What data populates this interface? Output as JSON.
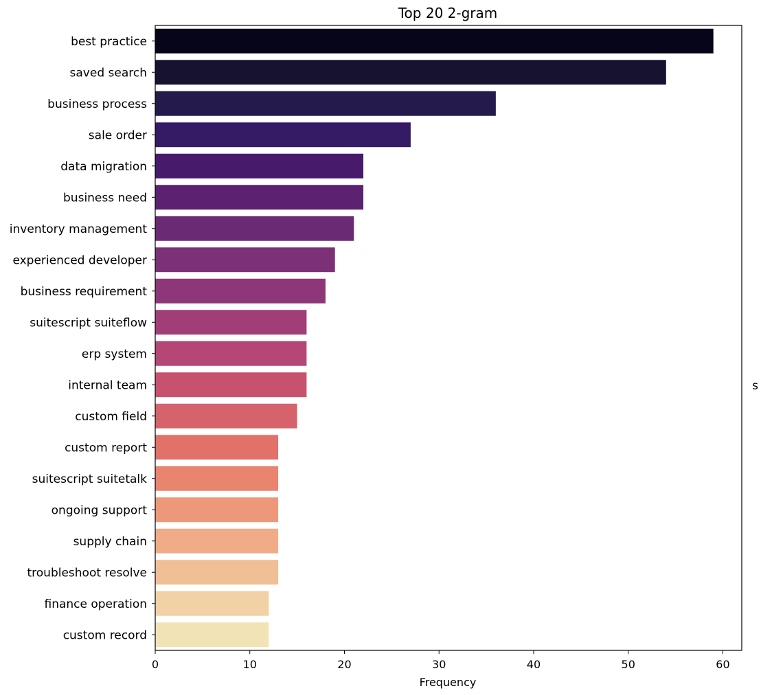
{
  "chart_data": {
    "type": "bar",
    "orientation": "horizontal",
    "title": "Top 20 2-gram",
    "xlabel": "Frequency",
    "ylabel": "",
    "xlim": [
      0,
      62
    ],
    "xticks": [
      0,
      10,
      20,
      30,
      40,
      50,
      60
    ],
    "grid": false,
    "legend": "none",
    "side_text": "s",
    "categories": [
      "best practice",
      "saved search",
      "business process",
      "sale order",
      "data migration",
      "business need",
      "inventory management",
      "experienced developer",
      "business requirement",
      "suitescript suiteflow",
      "erp system",
      "internal team",
      "custom field",
      "custom report",
      "suitescript suitetalk",
      "ongoing support",
      "supply chain",
      "troubleshoot resolve",
      "finance operation",
      "custom record"
    ],
    "values": [
      59,
      54,
      36,
      27,
      22,
      22,
      21,
      19,
      18,
      16,
      16,
      16,
      15,
      13,
      13,
      13,
      13,
      13,
      12,
      12
    ],
    "colors": [
      "#070519",
      "#161230",
      "#241b4c",
      "#351a66",
      "#481a6c",
      "#5a2270",
      "#6b2a74",
      "#7c3177",
      "#8d3778",
      "#a13e78",
      "#b54776",
      "#c75270",
      "#d6626c",
      "#e2716a",
      "#e9856f",
      "#ed987a",
      "#efac86",
      "#f0bf95",
      "#f1d1a5",
      "#f2e3b6"
    ]
  }
}
